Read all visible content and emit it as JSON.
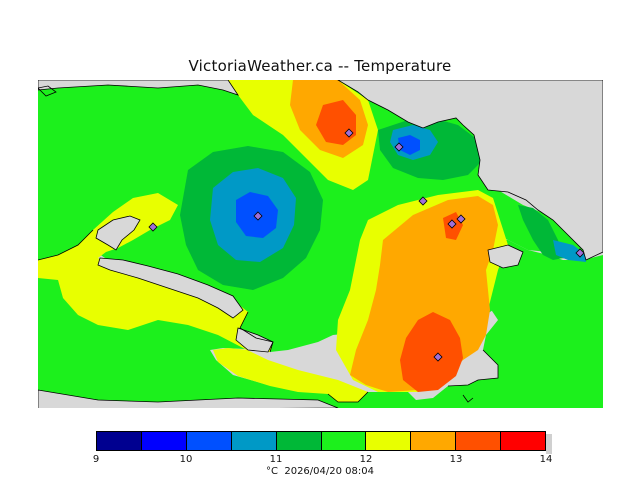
{
  "title": "VictoriaWeather.ca -- Temperature",
  "legend": {
    "colors": [
      "#000090",
      "#0000ff",
      "#0050ff",
      "#0099c6",
      "#00b837",
      "#1cf01c",
      "#e8ff00",
      "#ffa800",
      "#ff5000",
      "#ff0000"
    ],
    "ticks": [
      "9",
      "10",
      "11",
      "12",
      "13",
      "14"
    ],
    "unit": "°C",
    "timestamp": "2026/04/20 08:04"
  },
  "map": {
    "land_color": "#00ff00",
    "water_color": "#d8d8d8",
    "station_marker": "diamond-icon"
  }
}
